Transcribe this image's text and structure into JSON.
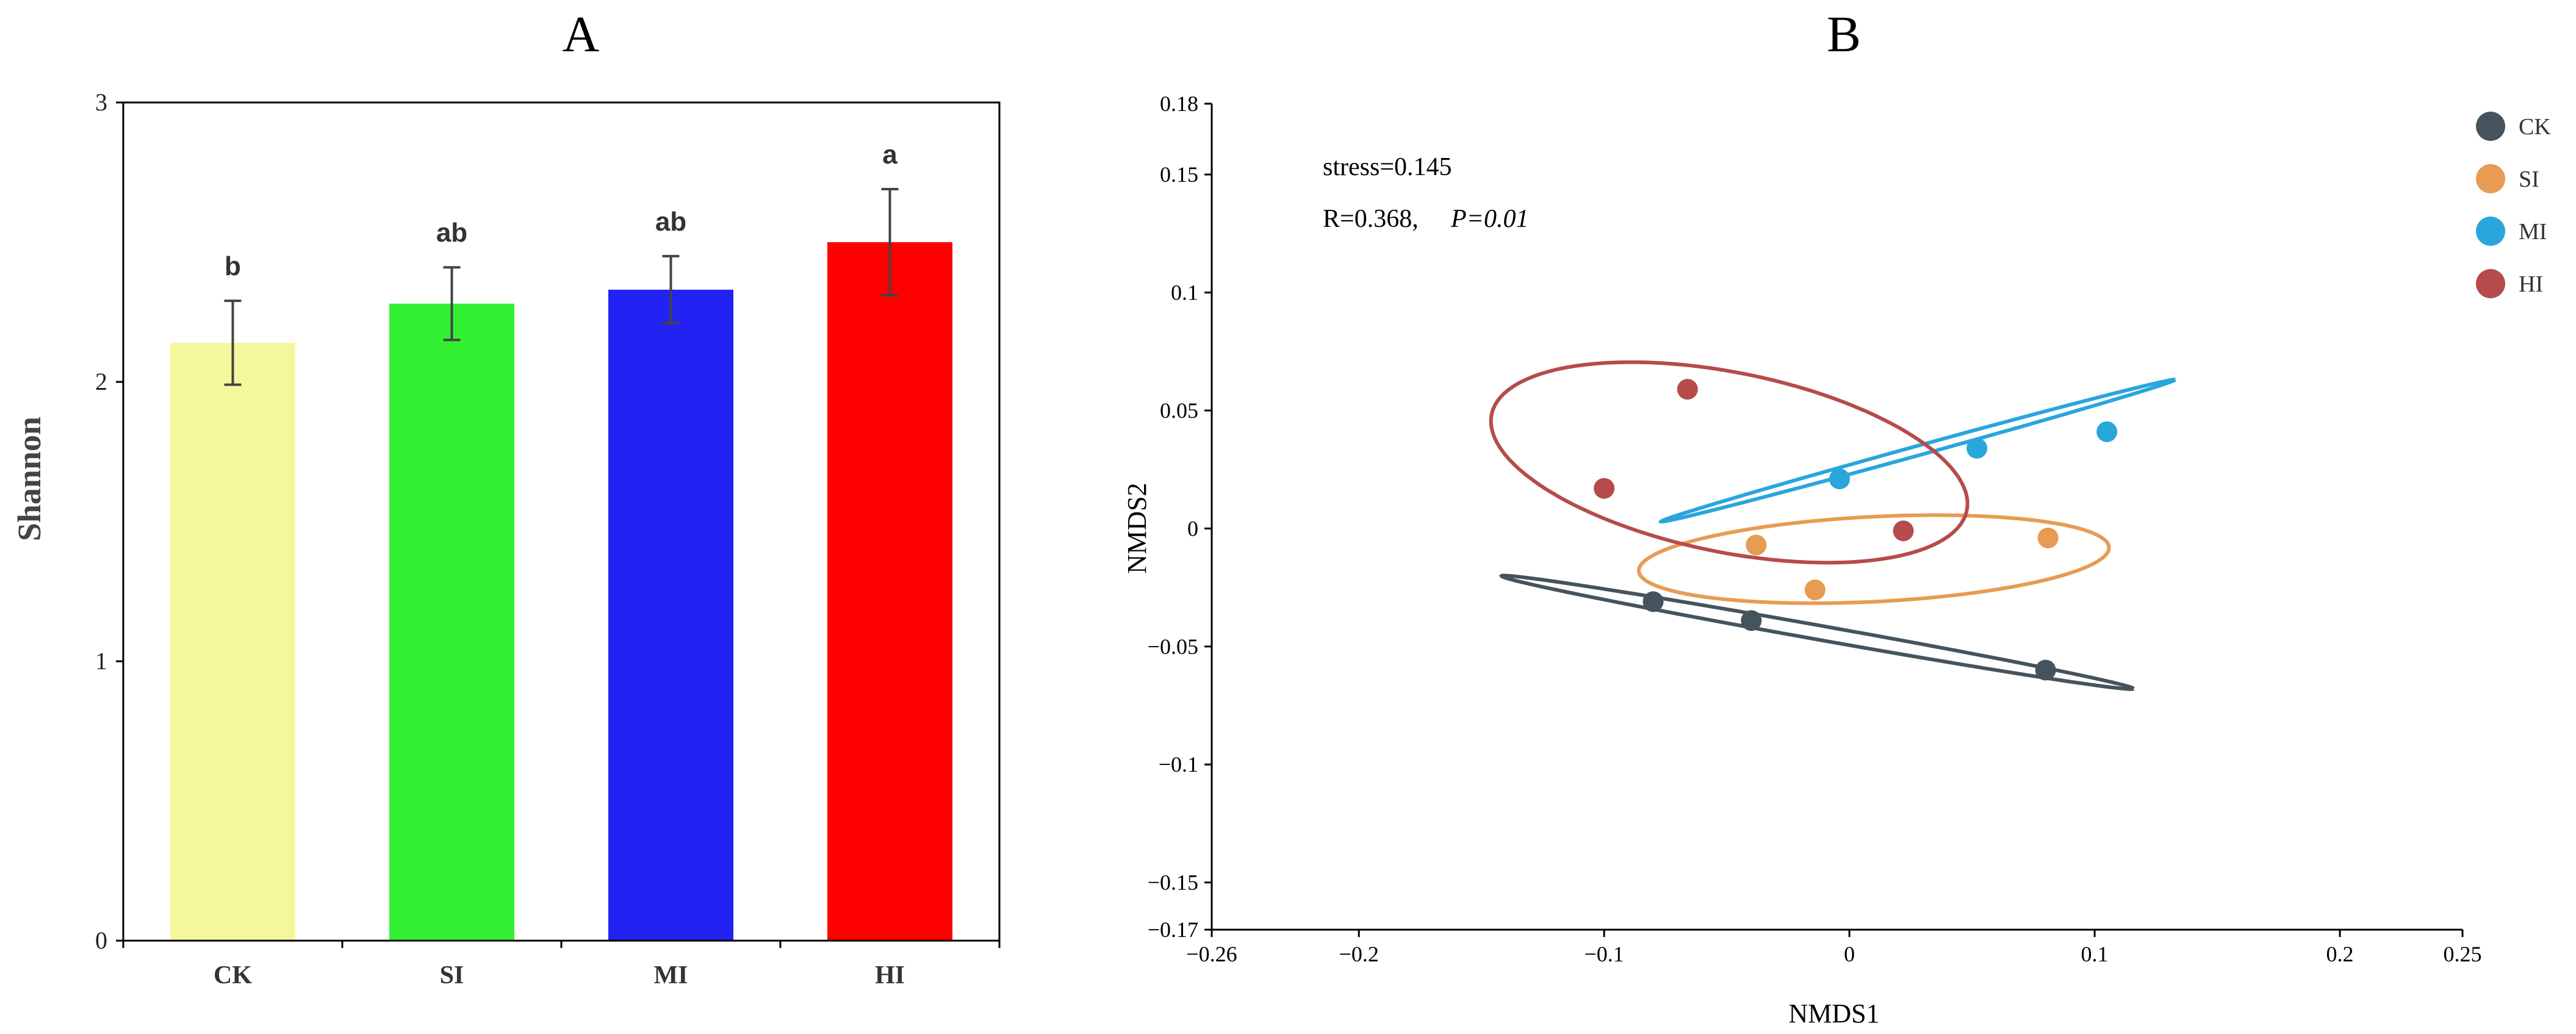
{
  "chart_data": [
    {
      "type": "bar",
      "panel_label": "A",
      "title": "A",
      "ylabel": "Shannon",
      "xlabel": "",
      "ylim": [
        0,
        3
      ],
      "yticks": [
        "0",
        "1",
        "2",
        "3"
      ],
      "categories": [
        "CK",
        "SI",
        "MI",
        "HI"
      ],
      "values": [
        2.14,
        2.28,
        2.33,
        2.5
      ],
      "errors": [
        0.15,
        0.13,
        0.12,
        0.19
      ],
      "significance": [
        "b",
        "ab",
        "ab",
        "a"
      ],
      "colors": [
        "#f5f79d",
        "#33f033",
        "#2222f2",
        "#fe0000"
      ],
      "grid": false
    },
    {
      "type": "scatter",
      "panel_label": "B",
      "title": "B",
      "xlabel": "NMDS1",
      "ylabel": "NMDS2",
      "xlim": [
        -0.26,
        0.25
      ],
      "ylim": [
        -0.17,
        0.18
      ],
      "xticks": [
        "−0.26",
        "−0.2",
        "−0.1",
        "0",
        "0.1",
        "0.2",
        "0.25"
      ],
      "yticks": [
        "0.18",
        "0.15",
        "0.1",
        "0.05",
        "0",
        "−0.05",
        "−0.1",
        "−0.15",
        "−0.17"
      ],
      "annotations": {
        "stress": "stress=0.145",
        "r_value": "R=0.368,",
        "p_value": "P=0.01"
      },
      "legend_position": "right",
      "grid": false,
      "series": [
        {
          "name": "CK",
          "color": "#45545c",
          "points": [
            [
              -0.08,
              -0.031
            ],
            [
              -0.04,
              -0.039
            ],
            [
              0.08,
              -0.06
            ]
          ],
          "ellipse": {
            "cx": -0.013,
            "cy": -0.044,
            "rx": 0.131,
            "ry": 0.003,
            "angle_deg": -10.5
          }
        },
        {
          "name": "SI",
          "color": "#e79b53",
          "points": [
            [
              -0.038,
              -0.007
            ],
            [
              -0.014,
              -0.026
            ],
            [
              0.081,
              -0.004
            ]
          ],
          "ellipse": {
            "cx": 0.01,
            "cy": -0.013,
            "rx": 0.096,
            "ry": 0.018,
            "angle_deg": 3
          }
        },
        {
          "name": "MI",
          "color": "#29a6dc",
          "points": [
            [
              -0.004,
              0.021
            ],
            [
              0.052,
              0.034
            ],
            [
              0.105,
              0.041
            ]
          ],
          "ellipse": {
            "cx": 0.028,
            "cy": 0.033,
            "rx": 0.109,
            "ry": 0.002,
            "angle_deg": 16
          }
        },
        {
          "name": "HI",
          "color": "#b64b4b",
          "points": [
            [
              -0.1,
              0.017
            ],
            [
              -0.066,
              0.059
            ],
            [
              0.022,
              -0.001
            ]
          ],
          "ellipse": {
            "cx": -0.049,
            "cy": 0.028,
            "rx": 0.099,
            "ry": 0.038,
            "angle_deg": -12
          }
        }
      ]
    }
  ]
}
